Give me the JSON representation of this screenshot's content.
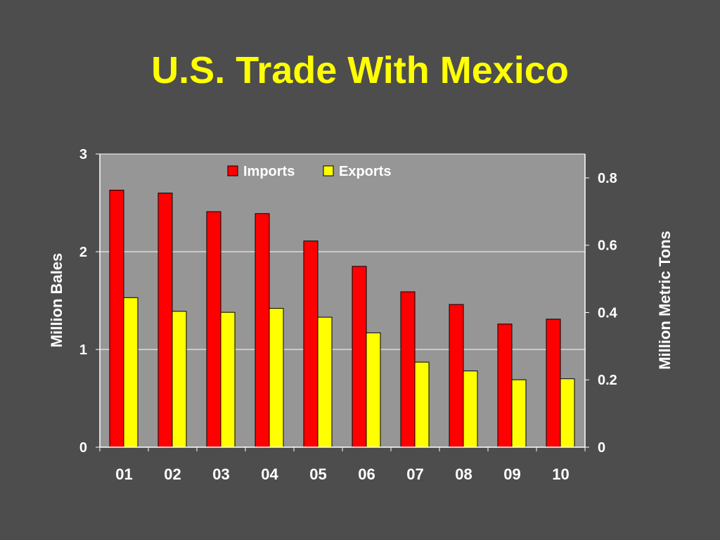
{
  "slide": {
    "title": "U.S. Trade With Mexico"
  },
  "colors": {
    "background": "#4d4d4d",
    "plot_area": "#969696",
    "title": "#ffff00",
    "imports": "#ff0000",
    "exports": "#ffff00",
    "text": "#ffffff"
  },
  "chart_data": {
    "type": "bar",
    "title": "U.S. Trade With Mexico",
    "categories": [
      "01",
      "02",
      "03",
      "04",
      "05",
      "06",
      "07",
      "08",
      "09",
      "10"
    ],
    "series": [
      {
        "name": "Imports",
        "values": [
          2.63,
          2.6,
          2.41,
          2.39,
          2.11,
          1.85,
          1.59,
          1.46,
          1.26,
          1.31
        ]
      },
      {
        "name": "Exports",
        "values": [
          1.53,
          1.39,
          1.38,
          1.42,
          1.33,
          1.17,
          0.87,
          0.78,
          0.69,
          0.7
        ]
      }
    ],
    "ylabel": "Million Bales",
    "ylim": [
      0,
      3
    ],
    "yticks": [
      "0",
      "1",
      "2",
      "3"
    ],
    "y2label": "Million Metric Tons",
    "y2lim": [
      0,
      0.871
    ],
    "y2ticks": [
      "0",
      "0.2",
      "0.4",
      "0.6",
      "0.8"
    ],
    "legend": "top-center",
    "grid": true
  }
}
